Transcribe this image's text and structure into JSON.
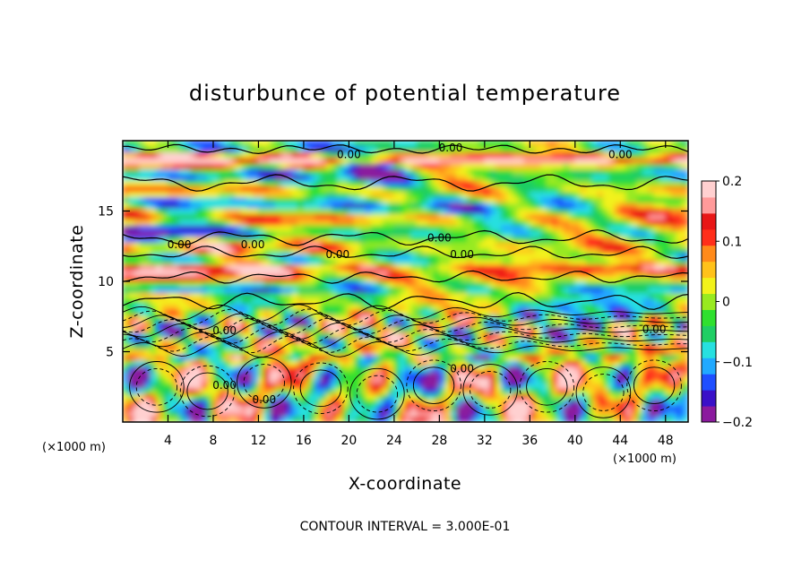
{
  "chart_data": {
    "type": "heatmap",
    "title": "disturbunce of potential temperature",
    "xlabel": "X-coordinate",
    "ylabel": "Z-coordinate",
    "x_unit": "(×1000 m)",
    "x_unit_right": "(×1000 m)",
    "xlim": [
      0,
      50
    ],
    "ylim": [
      0,
      20
    ],
    "x_ticks": [
      4,
      8,
      12,
      16,
      20,
      24,
      28,
      32,
      36,
      40,
      44,
      48
    ],
    "y_ticks": [
      5,
      10,
      15
    ],
    "colorbar": {
      "min": -0.2,
      "max": 0.2,
      "tick_values": [
        0.2,
        0.1,
        0,
        -0.1,
        -0.2
      ],
      "tick_labels": [
        "0.2",
        "0.1",
        "0",
        "−0.1",
        "−0.2"
      ],
      "colors": [
        "#8b1a9e",
        "#3a10c8",
        "#1f4fff",
        "#21a9ff",
        "#27e0e0",
        "#1fce64",
        "#2fe02f",
        "#98ea20",
        "#f2f21a",
        "#ffc21a",
        "#ff8a1a",
        "#ff2e1a",
        "#e81616",
        "#ff9a9a",
        "#ffd0d0"
      ]
    },
    "contour_interval_text": "CONTOUR INTERVAL = 3.000E-01",
    "contour_labels": [
      {
        "text": "0.00",
        "x": 20,
        "z": 19.0
      },
      {
        "text": "0.00",
        "x": 29,
        "z": 19.5
      },
      {
        "text": "0.00",
        "x": 44,
        "z": 19.0
      },
      {
        "text": "0.00",
        "x": 5,
        "z": 12.6
      },
      {
        "text": "0.00",
        "x": 11.5,
        "z": 12.6
      },
      {
        "text": "0.00",
        "x": 19,
        "z": 11.9
      },
      {
        "text": "0.00",
        "x": 28,
        "z": 13.1
      },
      {
        "text": "0.00",
        "x": 30,
        "z": 11.9
      },
      {
        "text": "0.00",
        "x": 9,
        "z": 6.5
      },
      {
        "text": "0.00",
        "x": 47,
        "z": 6.6
      },
      {
        "text": "0.00",
        "x": 9,
        "z": 2.6
      },
      {
        "text": "0.00",
        "x": 12.5,
        "z": 1.6
      },
      {
        "text": "0.00",
        "x": 30,
        "z": 3.8
      }
    ]
  }
}
